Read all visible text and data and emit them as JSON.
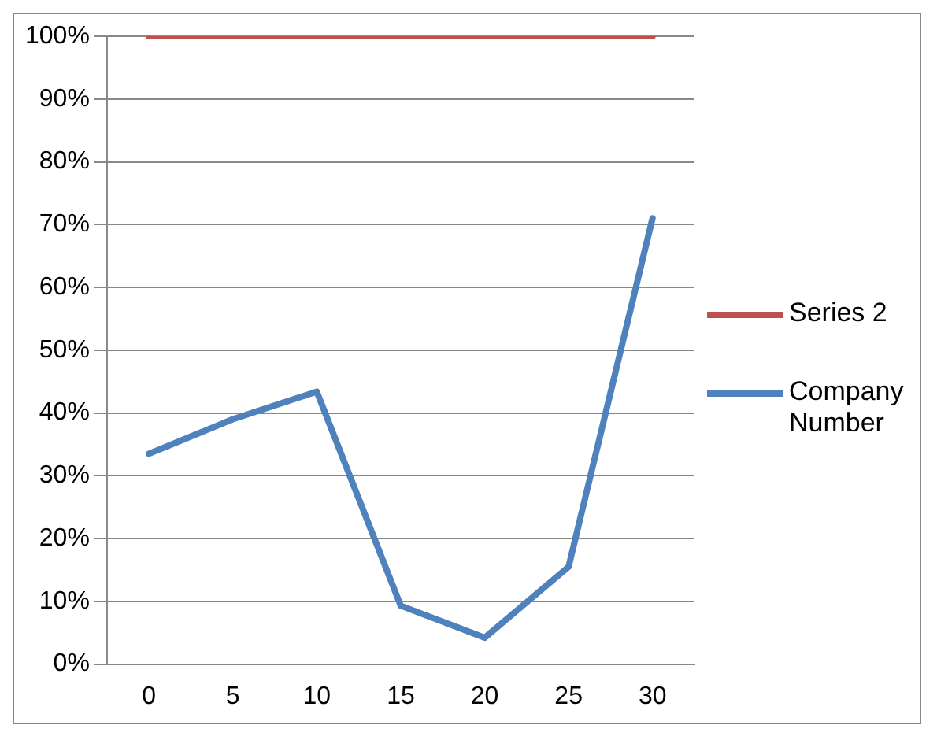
{
  "chart_data": {
    "type": "line",
    "categories": [
      "0",
      "5",
      "10",
      "15",
      "20",
      "25",
      "30"
    ],
    "series": [
      {
        "name": "Series 2",
        "color": "#c0504d",
        "values": [
          100,
          100,
          100,
          100,
          100,
          100,
          100
        ]
      },
      {
        "name": "Company Number",
        "color": "#4f81bd",
        "values": [
          33.5,
          39,
          43.4,
          9.3,
          4.2,
          15.5,
          71
        ]
      }
    ],
    "ylim": [
      0,
      100
    ],
    "yticks": [
      {
        "value": 0,
        "label": "0%"
      },
      {
        "value": 10,
        "label": "10%"
      },
      {
        "value": 20,
        "label": "20%"
      },
      {
        "value": 30,
        "label": "30%"
      },
      {
        "value": 40,
        "label": "40%"
      },
      {
        "value": 50,
        "label": "50%"
      },
      {
        "value": 60,
        "label": "60%"
      },
      {
        "value": 70,
        "label": "70%"
      },
      {
        "value": 80,
        "label": "80%"
      },
      {
        "value": 90,
        "label": "90%"
      },
      {
        "value": 100,
        "label": "100%"
      }
    ],
    "grid": "y",
    "legend": "right",
    "marker": "none",
    "line_style": "solid"
  }
}
